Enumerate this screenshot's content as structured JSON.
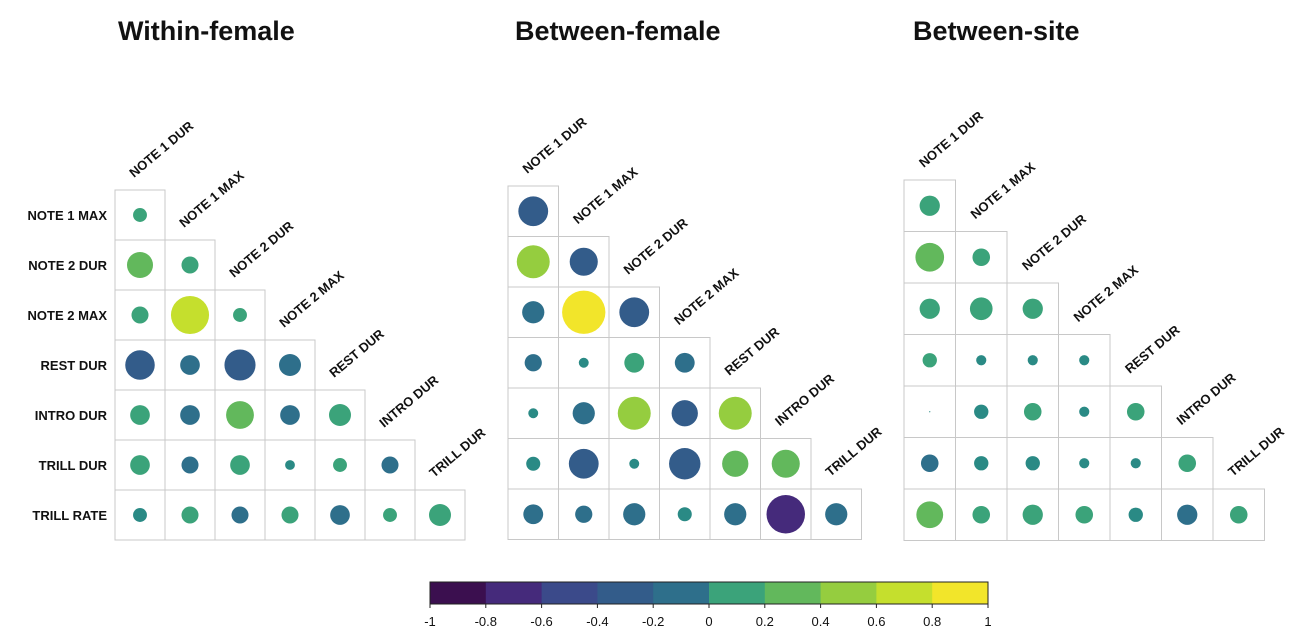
{
  "chart_data": {
    "type": "heatmap",
    "variables": [
      "NOTE 1 DUR",
      "NOTE 1 MAX",
      "NOTE 2 DUR",
      "NOTE 2 MAX",
      "REST DUR",
      "INTRO DUR",
      "TRILL DUR"
    ],
    "rows": [
      "NOTE 1 MAX",
      "NOTE 2 DUR",
      "NOTE 2 MAX",
      "REST DUR",
      "INTRO DUR",
      "TRILL DUR",
      "TRILL RATE"
    ],
    "panels": [
      {
        "title": "Within-female",
        "values": [
          [
            0.1
          ],
          [
            0.35,
            0.15
          ],
          [
            0.15,
            0.75,
            0.1
          ],
          [
            -0.45,
            -0.2,
            -0.5,
            -0.25
          ],
          [
            0.2,
            -0.2,
            0.4,
            -0.2,
            0.25
          ],
          [
            0.2,
            -0.15,
            0.2,
            0.05,
            0.1,
            -0.15
          ],
          [
            -0.1,
            0.15,
            -0.15,
            0.15,
            -0.2,
            0.1,
            0.25
          ]
        ]
      },
      {
        "title": "Between-female",
        "values": [
          [
            -0.45
          ],
          [
            0.55,
            -0.4
          ],
          [
            -0.25,
            0.95,
            -0.45
          ],
          [
            -0.15,
            -0.05,
            0.2,
            -0.2
          ],
          [
            0.05,
            -0.25,
            0.55,
            -0.35,
            0.55
          ],
          [
            -0.1,
            -0.45,
            0.05,
            -0.5,
            0.35,
            0.4
          ],
          [
            -0.2,
            -0.15,
            -0.25,
            -0.1,
            -0.25,
            -0.75,
            -0.25
          ]
        ]
      },
      {
        "title": "Between-site",
        "values": [
          [
            0.2
          ],
          [
            0.4,
            0.15
          ],
          [
            0.2,
            0.25,
            0.2
          ],
          [
            0.1,
            0.05,
            0.05,
            0.05
          ],
          [
            0.0,
            -0.1,
            0.15,
            -0.05,
            0.15
          ],
          [
            -0.15,
            -0.1,
            -0.1,
            0.05,
            -0.05,
            0.15
          ],
          [
            0.35,
            0.15,
            0.2,
            0.15,
            -0.1,
            -0.2,
            0.15
          ]
        ]
      }
    ],
    "legend": {
      "type": "colorbar",
      "range": [
        -1,
        1
      ],
      "ticks": [
        "-1",
        "-0.8",
        "-0.6",
        "-0.4",
        "-0.2",
        "0",
        "0.2",
        "0.4",
        "0.6",
        "0.8",
        "1"
      ],
      "colors": [
        "#3b0f4f",
        "#452a7b",
        "#3b4a8a",
        "#335c8a",
        "#2e6f8b",
        "#2a8a85",
        "#3ba37a",
        "#62b85c",
        "#95cd3f",
        "#c5df2d",
        "#f2e52a"
      ]
    }
  }
}
